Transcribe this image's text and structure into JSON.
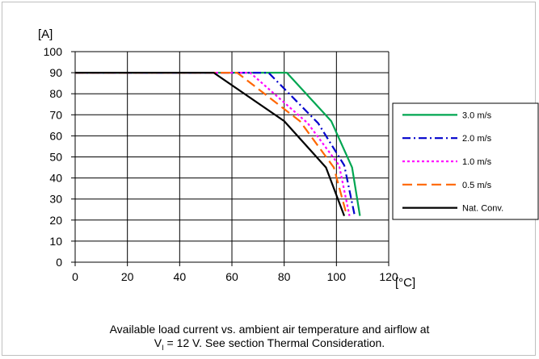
{
  "chart_data": {
    "type": "line",
    "ylabel": "[A]",
    "xlabel": "[°C]",
    "xlim": [
      0,
      120
    ],
    "ylim": [
      0,
      100
    ],
    "x_ticks": [
      "0",
      "20",
      "40",
      "60",
      "80",
      "100",
      "120"
    ],
    "y_ticks": [
      "0",
      "10",
      "20",
      "30",
      "40",
      "50",
      "60",
      "70",
      "80",
      "90",
      "100"
    ],
    "grid": true,
    "legend_position": "right",
    "series": [
      {
        "name": "3.0 m/s",
        "color": "#00a651",
        "dash": "solid",
        "points": [
          [
            0,
            90
          ],
          [
            81,
            90
          ],
          [
            98,
            67
          ],
          [
            106,
            45
          ],
          [
            109,
            22
          ]
        ]
      },
      {
        "name": "2.0 m/s",
        "color": "#0000cc",
        "dash": "dashdot",
        "points": [
          [
            0,
            90
          ],
          [
            74,
            90
          ],
          [
            93,
            66
          ],
          [
            103,
            46
          ],
          [
            107,
            22
          ]
        ]
      },
      {
        "name": "1.0 m/s",
        "color": "#ff00ff",
        "dash": "dot",
        "points": [
          [
            0,
            90
          ],
          [
            67,
            90
          ],
          [
            89,
            66
          ],
          [
            101,
            46
          ],
          [
            105,
            22
          ]
        ]
      },
      {
        "name": "0.5 m/s",
        "color": "#ff6600",
        "dash": "dash",
        "points": [
          [
            0,
            90
          ],
          [
            62,
            90
          ],
          [
            86,
            67
          ],
          [
            99,
            45
          ],
          [
            104,
            22
          ]
        ]
      },
      {
        "name": "Nat. Conv.",
        "color": "#000000",
        "dash": "solid",
        "points": [
          [
            0,
            90
          ],
          [
            53,
            90
          ],
          [
            80,
            67
          ],
          [
            96,
            45
          ],
          [
            103,
            22
          ]
        ]
      }
    ]
  },
  "caption": {
    "line1": "Available load current vs. ambient air temperature and airflow at",
    "line2_prefix": "V",
    "line2_sub": "I",
    "line2_suffix": " = 12 V. See section Thermal Consideration."
  }
}
